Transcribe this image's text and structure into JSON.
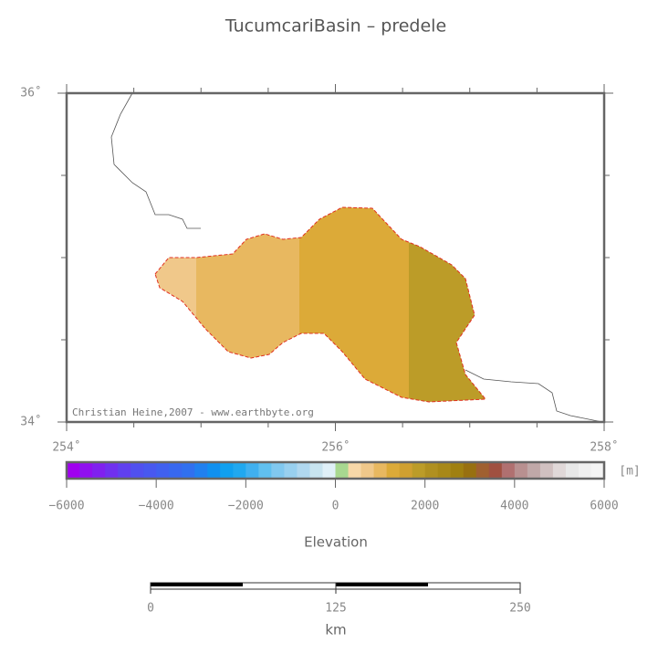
{
  "header": {
    "title": "TucumcariBasin – predele"
  },
  "map": {
    "lat_labels": [
      "36˚",
      "34˚"
    ],
    "lon_labels": [
      "254˚",
      "256˚",
      "258˚"
    ],
    "credit": "Christian Heine,2007 - www.earthbyte.org"
  },
  "colorbar": {
    "ticks": [
      "−6000",
      "−4000",
      "−2000",
      "0",
      "2000",
      "4000",
      "6000"
    ],
    "unit": "[m]",
    "label": "Elevation"
  },
  "scalebar": {
    "ticks": [
      "0",
      "125",
      "250"
    ],
    "unit": "km"
  }
}
